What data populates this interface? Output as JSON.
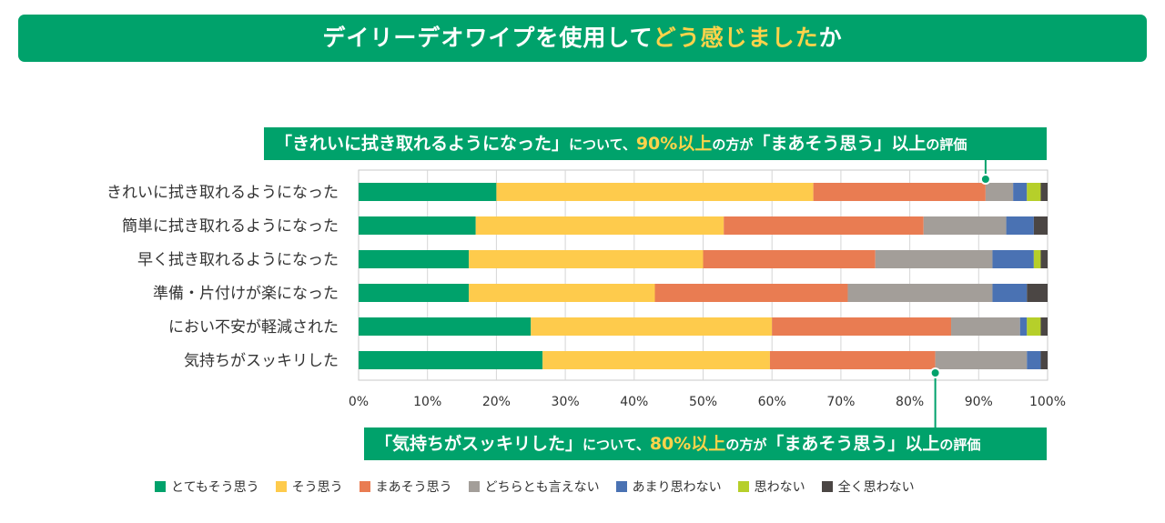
{
  "header": {
    "title_part1": "デイリーデオワイプを使用して",
    "title_highlight": "どう感じました",
    "title_part2": "か"
  },
  "callout_top": {
    "quote": "「きれいに拭き取れるようになった」",
    "mid": "について、",
    "num": "90%以上",
    "mid2": "の方が",
    "quote2": "「まあそう思う」以上",
    "tail": "の評価"
  },
  "callout_bottom": {
    "quote": "「気持ちがスッキリした」",
    "mid": "について、",
    "num": "80%以上",
    "mid2": "の方が",
    "quote2": "「まあそう思う」以上",
    "tail": "の評価"
  },
  "chart_data": {
    "type": "bar",
    "orientation": "horizontal",
    "stacked": true,
    "categories": [
      "きれいに拭き取れるようになった",
      "簡単に拭き取れるようになった",
      "早く拭き取れるようになった",
      "準備・片付けが楽になった",
      "におい不安が軽減された",
      "気持ちがスッキリした"
    ],
    "series": [
      {
        "name": "とてもそう思う",
        "color": "#00a26b",
        "values": [
          20,
          17,
          16,
          16,
          25,
          26.7
        ]
      },
      {
        "name": "そう思う",
        "color": "#fecb4c",
        "values": [
          46,
          36,
          34,
          27,
          35,
          33
        ]
      },
      {
        "name": "まあそう思う",
        "color": "#e97c52",
        "values": [
          25,
          29,
          25,
          28,
          26,
          24
        ]
      },
      {
        "name": "どちらとも言えない",
        "color": "#a39e99",
        "values": [
          4,
          12,
          17,
          21,
          10,
          13.3
        ]
      },
      {
        "name": "あまり思わない",
        "color": "#4a72b3",
        "values": [
          2,
          4,
          6,
          5,
          1,
          2
        ]
      },
      {
        "name": "思わない",
        "color": "#b6cf2a",
        "values": [
          2,
          0,
          1,
          0,
          2,
          0
        ]
      },
      {
        "name": "全く思わない",
        "color": "#4b4644",
        "values": [
          1,
          2,
          1,
          3,
          1,
          1
        ]
      }
    ],
    "xlim": [
      0,
      100
    ],
    "xticks": [
      "0%",
      "10%",
      "20%",
      "30%",
      "40%",
      "50%",
      "60%",
      "70%",
      "80%",
      "90%",
      "100%"
    ],
    "grid": true,
    "legend_position": "bottom",
    "annotations": [
      {
        "category_index": 0,
        "x_value": 91
      },
      {
        "category_index": 5,
        "x_value": 83.7
      }
    ]
  }
}
